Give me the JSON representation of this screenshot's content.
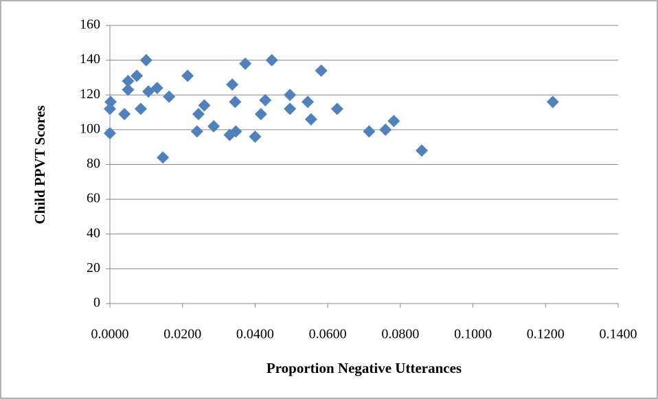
{
  "chart_data": {
    "type": "scatter",
    "x_label": "Proportion Negative Utterances",
    "y_label": "Child PPVT Scores",
    "color": "#4f81bd",
    "grid": true,
    "xlim": [
      0,
      0.14
    ],
    "ylim": [
      0,
      160
    ],
    "xticks": [
      {
        "value": 0,
        "label": "0.0000"
      },
      {
        "value": 0.02,
        "label": "0.0200"
      },
      {
        "value": 0.04,
        "label": "0.0400"
      },
      {
        "value": 0.06,
        "label": "0.0600"
      },
      {
        "value": 0.08,
        "label": "0.0800"
      },
      {
        "value": 0.1,
        "label": "0.1000"
      },
      {
        "value": 0.12,
        "label": "0.1200"
      },
      {
        "value": 0.14,
        "label": "0.1400"
      }
    ],
    "yticks": [
      0,
      20,
      40,
      60,
      80,
      100,
      120,
      140,
      160
    ],
    "x": [
      0.0002,
      0,
      0,
      0.004,
      0.005,
      0.005,
      0.0074,
      0.0085,
      0.01,
      0.0106,
      0.013,
      0.0146,
      0.0163,
      0.0214,
      0.024,
      0.0244,
      0.026,
      0.0286,
      0.033,
      0.0337,
      0.0345,
      0.0347,
      0.0373,
      0.04,
      0.0416,
      0.0428,
      0.0446,
      0.0496,
      0.0496,
      0.0545,
      0.0554,
      0.0582,
      0.0626,
      0.0714,
      0.0759,
      0.0782,
      0.0859,
      0.122
    ],
    "values": [
      116,
      112,
      98,
      109,
      128,
      123,
      131,
      112,
      140,
      122,
      124,
      84,
      119,
      131,
      99,
      109,
      114,
      102,
      97,
      126,
      116,
      99,
      138,
      96,
      109,
      117,
      140,
      120,
      112,
      116,
      106,
      134,
      112,
      99,
      100,
      105,
      88,
      116
    ]
  }
}
